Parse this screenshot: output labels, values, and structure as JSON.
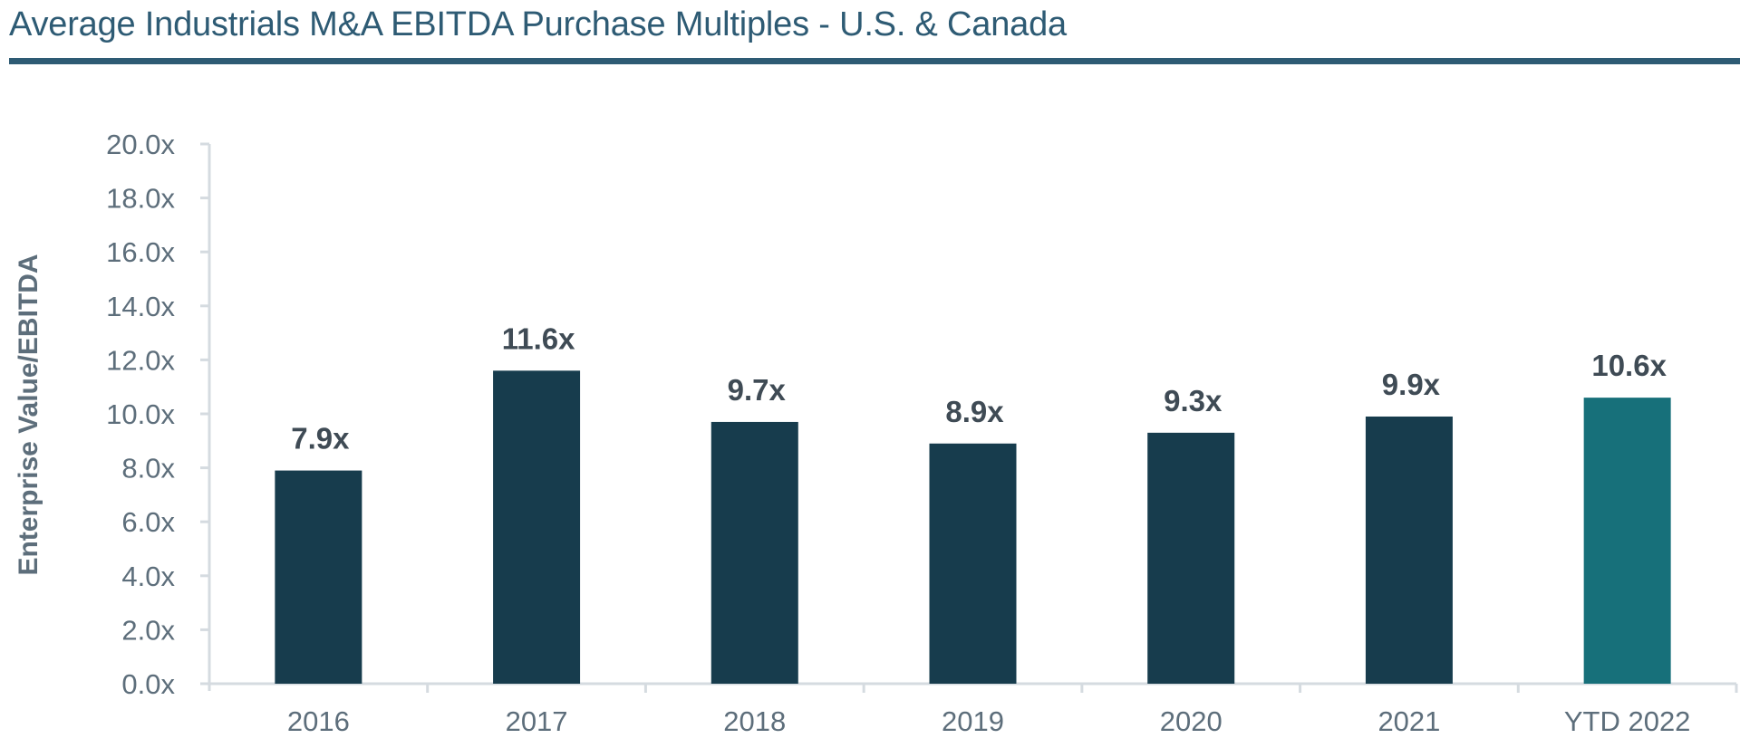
{
  "chart_data": {
    "type": "bar",
    "title": "Average Industrials M&A EBITDA Purchase Multiples - U.S. & Canada",
    "xlabel": "",
    "ylabel": "Enterprise Value/EBITDA",
    "ylim": [
      0,
      20
    ],
    "yticks": [
      0,
      2,
      4,
      6,
      8,
      10,
      12,
      14,
      16,
      18,
      20
    ],
    "ytick_labels": [
      "0.0x",
      "2.0x",
      "4.0x",
      "6.0x",
      "8.0x",
      "10.0x",
      "12.0x",
      "14.0x",
      "16.0x",
      "18.0x",
      "20.0x"
    ],
    "categories": [
      "2016",
      "2017",
      "2018",
      "2019",
      "2020",
      "2021",
      "YTD 2022"
    ],
    "values": [
      7.9,
      11.6,
      9.7,
      8.9,
      9.3,
      9.9,
      10.6
    ],
    "data_labels": [
      "7.9x",
      "11.6x",
      "9.7x",
      "8.9x",
      "9.3x",
      "9.9x",
      "10.6x"
    ],
    "bar_colors": [
      "#173c4d",
      "#173c4d",
      "#173c4d",
      "#173c4d",
      "#173c4d",
      "#173c4d",
      "#17707a"
    ],
    "grid": false,
    "legend": "none"
  }
}
